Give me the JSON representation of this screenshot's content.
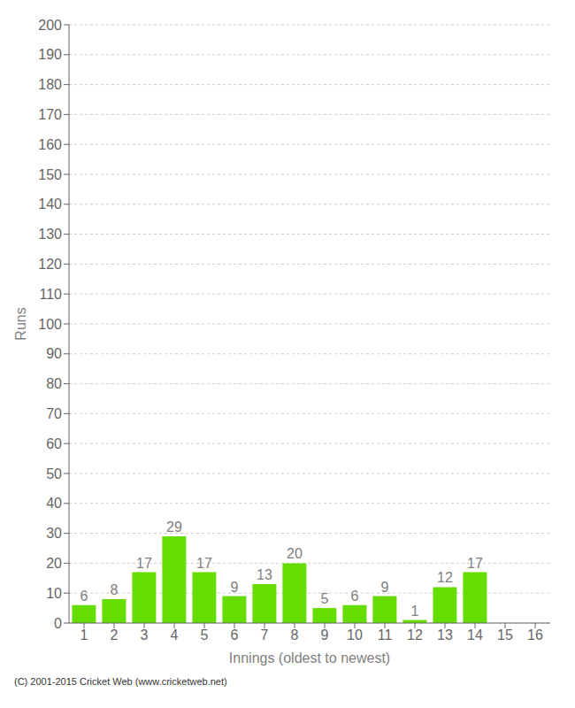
{
  "chart_data": {
    "type": "bar",
    "xlabel": "Innings (oldest to newest)",
    "ylabel": "Runs",
    "categories": [
      "1",
      "2",
      "3",
      "4",
      "5",
      "6",
      "7",
      "8",
      "9",
      "10",
      "11",
      "12",
      "13",
      "14",
      "15",
      "16"
    ],
    "values": [
      6,
      8,
      17,
      29,
      17,
      9,
      13,
      20,
      5,
      6,
      9,
      1,
      12,
      17,
      0,
      0
    ],
    "color": "#66dd00",
    "ylim": [
      0,
      200
    ],
    "yticks": [
      0,
      10,
      20,
      30,
      40,
      50,
      60,
      70,
      80,
      90,
      100,
      110,
      120,
      130,
      140,
      150,
      160,
      170,
      180,
      190,
      200
    ],
    "grid": true,
    "data_labels": true,
    "annotations": [
      "(C) 2001-2015 Cricket Web (www.cricketweb.net)"
    ]
  }
}
